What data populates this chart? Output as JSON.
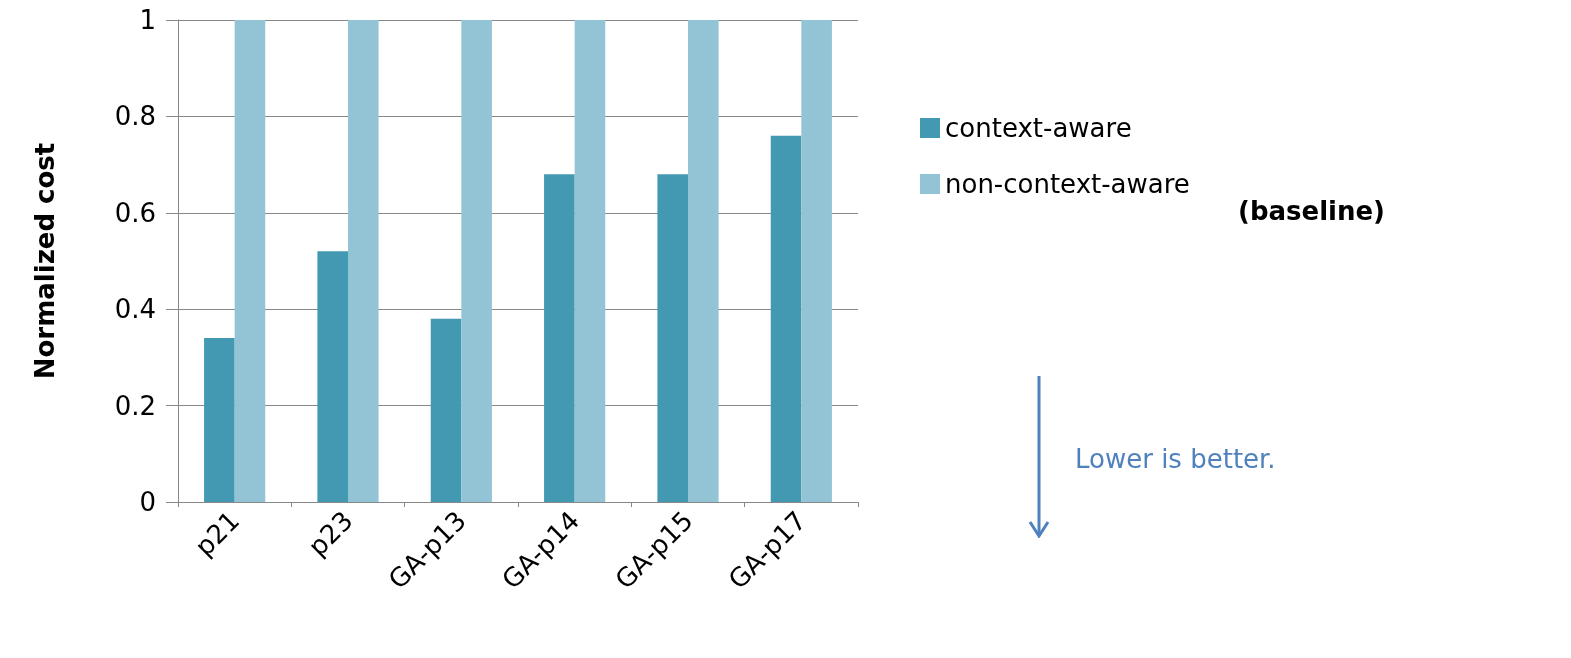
{
  "chart_data": {
    "type": "bar",
    "ylabel": "Normalized cost",
    "categories": [
      "p21",
      "p23",
      "GA-p13",
      "GA-p14",
      "GA-p15",
      "GA-p17"
    ],
    "series": [
      {
        "name": "context-aware",
        "color": "#4399b1",
        "values": [
          0.34,
          0.52,
          0.38,
          0.68,
          0.68,
          0.76
        ]
      },
      {
        "name": "non-context-aware",
        "color": "#93c4d6",
        "values": [
          1,
          1,
          1,
          1,
          1,
          1
        ]
      }
    ],
    "ylim": [
      0,
      1
    ],
    "yticks": [
      {
        "value": 0,
        "label": "0"
      },
      0.2,
      0.4,
      0.6,
      0.8,
      1
    ],
    "grid": "y",
    "legend": "right",
    "annotations": [
      "(baseline)",
      "Lower is better."
    ]
  }
}
